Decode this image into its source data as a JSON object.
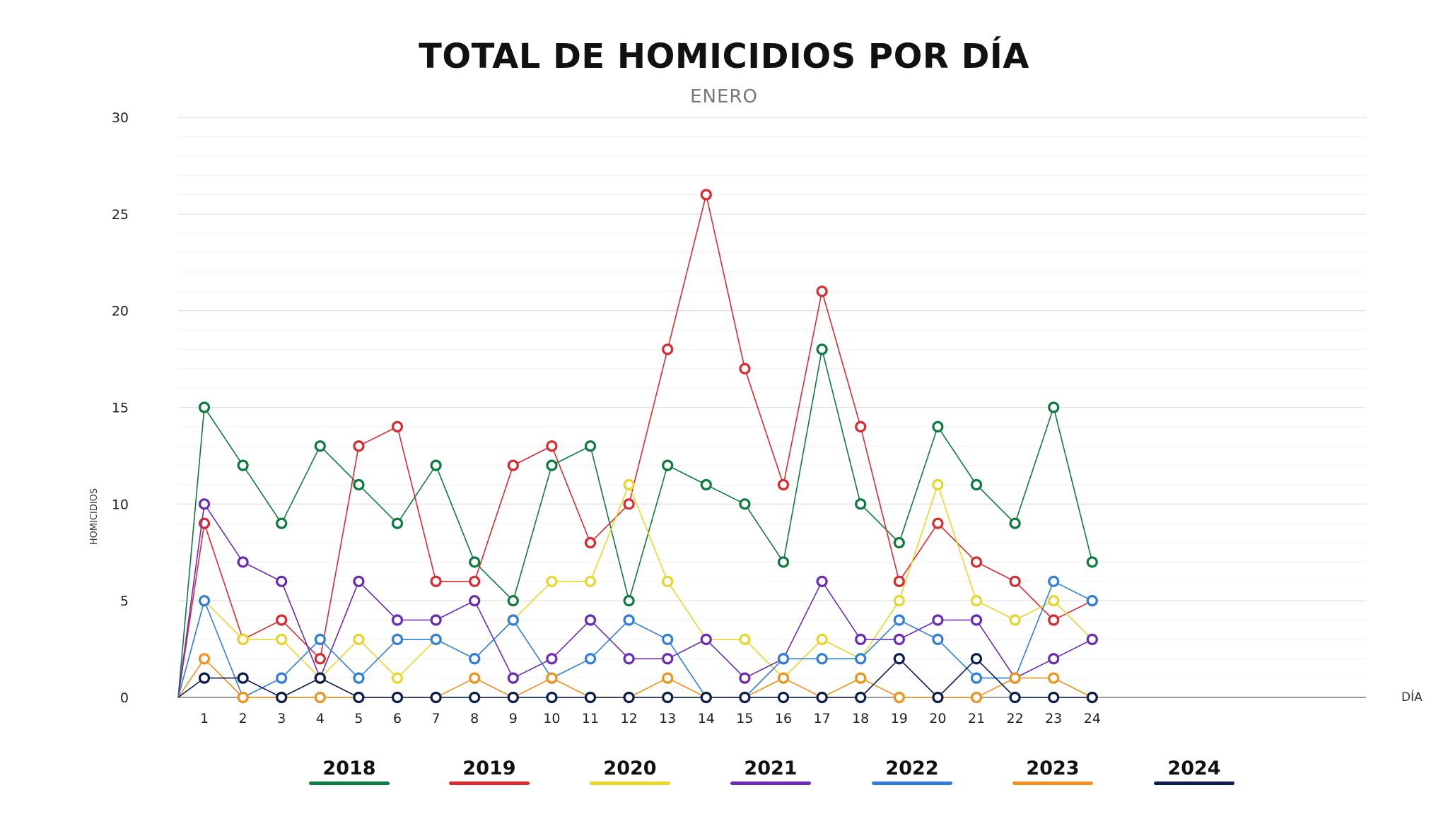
{
  "chart_data": {
    "type": "line",
    "title": "TOTAL DE HOMICIDIOS POR DÍA",
    "subtitle": "ENERO",
    "xlabel": "DÍA",
    "ylabel": "HOMICIDIOS",
    "ylim": [
      0,
      30
    ],
    "yticks": [
      "0",
      "5",
      "10",
      "15",
      "20",
      "25",
      "30"
    ],
    "categories": [
      "1",
      "2",
      "3",
      "4",
      "5",
      "6",
      "7",
      "8",
      "9",
      "10",
      "11",
      "12",
      "13",
      "14",
      "15",
      "16",
      "17",
      "18",
      "19",
      "20",
      "21",
      "22",
      "23",
      "24"
    ],
    "grid": true,
    "legend_position": "bottom",
    "series": [
      {
        "name": "2018",
        "color": "#0d7a3e",
        "values": [
          15,
          12,
          9,
          13,
          11,
          9,
          12,
          7,
          5,
          12,
          13,
          5,
          12,
          11,
          10,
          7,
          18,
          10,
          8,
          14,
          11,
          9,
          15,
          7
        ]
      },
      {
        "name": "2019",
        "color": "#d92b2f",
        "values": [
          9,
          3,
          4,
          2,
          13,
          14,
          6,
          6,
          12,
          13,
          8,
          10,
          18,
          26,
          17,
          11,
          21,
          14,
          6,
          9,
          7,
          6,
          4,
          5
        ]
      },
      {
        "name": "2020",
        "color": "#e8d52c",
        "values": [
          5,
          3,
          3,
          1,
          3,
          1,
          3,
          2,
          4,
          6,
          6,
          11,
          6,
          3,
          3,
          1,
          3,
          2,
          5,
          11,
          5,
          4,
          5,
          3
        ]
      },
      {
        "name": "2021",
        "color": "#6a2bb5",
        "values": [
          10,
          7,
          6,
          1,
          6,
          4,
          4,
          5,
          1,
          2,
          4,
          2,
          2,
          3,
          1,
          2,
          6,
          3,
          3,
          4,
          4,
          1,
          2,
          3
        ]
      },
      {
        "name": "2022",
        "color": "#2f7fd8",
        "values": [
          5,
          0,
          1,
          3,
          1,
          3,
          3,
          2,
          4,
          1,
          2,
          4,
          3,
          0,
          0,
          2,
          2,
          2,
          4,
          3,
          1,
          1,
          6,
          5
        ]
      },
      {
        "name": "2023",
        "color": "#f0931e",
        "values": [
          2,
          0,
          0,
          0,
          0,
          0,
          0,
          1,
          0,
          1,
          0,
          0,
          1,
          0,
          0,
          1,
          0,
          1,
          0,
          0,
          0,
          1,
          1,
          0
        ]
      },
      {
        "name": "2024",
        "color": "#0b1f4e",
        "values": [
          1,
          1,
          0,
          1,
          0,
          0,
          0,
          0,
          0,
          0,
          0,
          0,
          0,
          0,
          0,
          0,
          0,
          0,
          2,
          0,
          2,
          0,
          0,
          0
        ]
      }
    ]
  }
}
